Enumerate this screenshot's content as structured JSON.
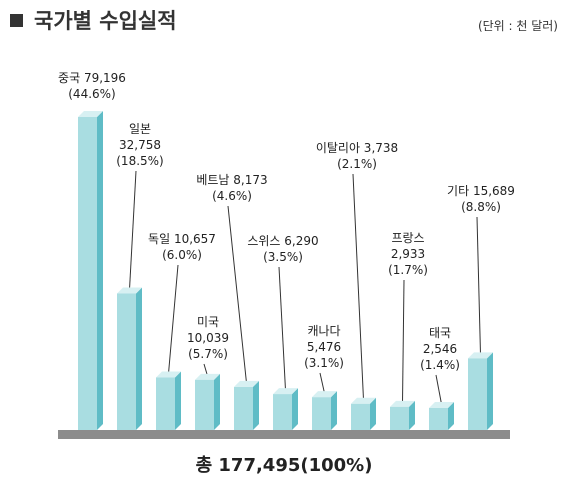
{
  "header": {
    "title": "국가별 수입실적",
    "unit": "(단위 : 천 달러)"
  },
  "total_label": "총 177,495(100%)",
  "colors": {
    "bar_front": "#a9dde1",
    "bar_top": "#d7f0f2",
    "bar_side": "#5fbcc6",
    "floor": "#8c8c8c",
    "leader": "#333333",
    "title_square": "#333333"
  },
  "chart_data": {
    "type": "bar",
    "categories": [
      "중국",
      "일본",
      "독일",
      "미국",
      "베트남",
      "스위스",
      "캐나다",
      "이탈리아",
      "프랑스",
      "태국",
      "기타"
    ],
    "values": [
      79196,
      32758,
      10657,
      10039,
      8173,
      6290,
      5476,
      3738,
      2933,
      2546,
      15689
    ],
    "labels": [
      [
        "중국 79,196",
        "(44.6%)"
      ],
      [
        "일본",
        "32,758",
        "(18.5%)"
      ],
      [
        "독일 10,657",
        "(6.0%)"
      ],
      [
        "미국",
        "10,039",
        "(5.7%)"
      ],
      [
        "베트남 8,173",
        "(4.6%)"
      ],
      [
        "스위스  6,290",
        "(3.5%)"
      ],
      [
        "캐나다",
        "5,476",
        "(3.1%)"
      ],
      [
        "이탈리아 3,738",
        "(2.1%)"
      ],
      [
        "프랑스",
        "2,933",
        "(1.7%)"
      ],
      [
        "태국",
        "2,546",
        "(1.4%)"
      ],
      [
        "기타 15,689",
        "(8.8%)"
      ]
    ],
    "title": "국가별 수입실적",
    "xlabel": "",
    "ylabel": "",
    "total": 177495,
    "grid": false,
    "legend": "none"
  }
}
